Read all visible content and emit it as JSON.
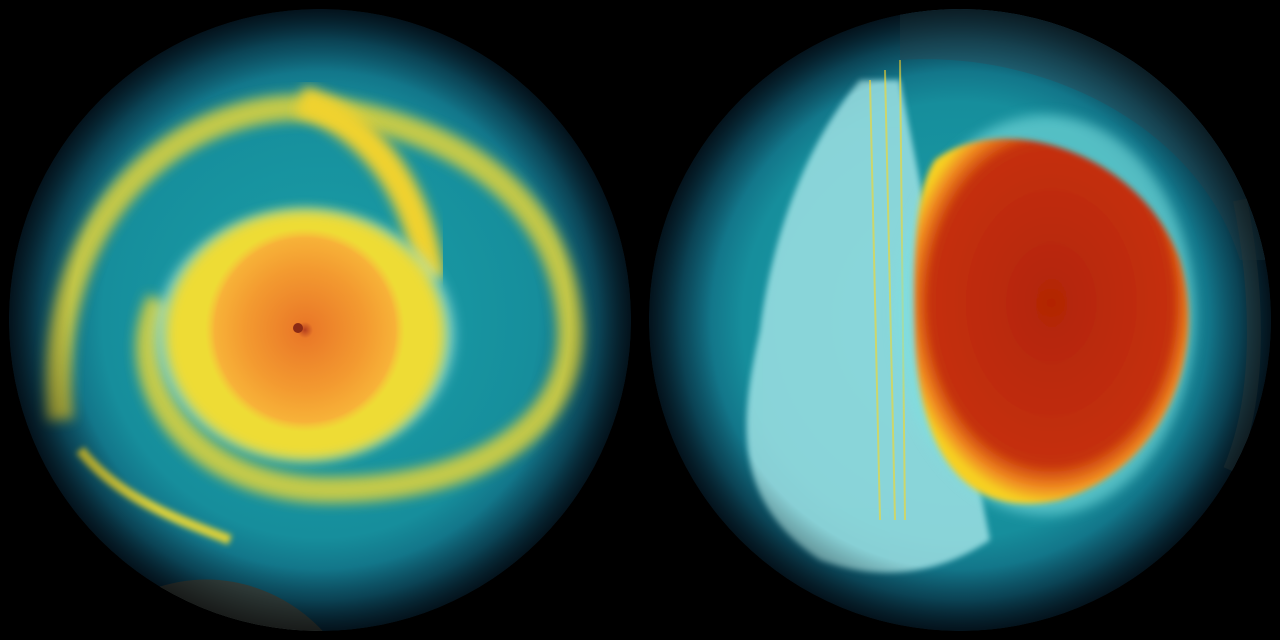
{
  "image": {
    "panels": [
      {
        "name": "left-globe",
        "palette": {
          "background": "#0b3a55",
          "ring": "#1ea7b0",
          "band": "#e8d83a",
          "core": "#f08a2a",
          "eye": "#a0351c"
        }
      },
      {
        "name": "right-globe",
        "palette": {
          "background": "#0b3a55",
          "ring": "#1ea7b0",
          "land": "#9fe3e6",
          "band": "#f2c21e",
          "core": "#b82808"
        }
      }
    ],
    "background_color": "#000000"
  }
}
